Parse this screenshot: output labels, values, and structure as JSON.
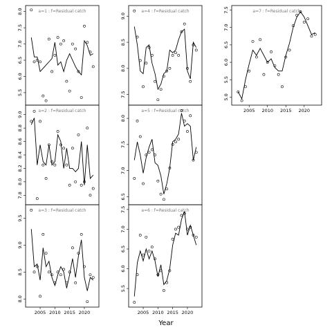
{
  "figure": {
    "xlabel": "Year"
  },
  "chart_data": [
    {
      "type": "line",
      "title": "a=1  :  f=Residual catch",
      "xlim": [
        2001,
        2024
      ],
      "ylim": [
        5.2,
        8.1
      ],
      "yticks": [
        5.5,
        6.0,
        6.5,
        7.0,
        7.5,
        8.0
      ],
      "xticks": [
        2005,
        2010,
        2015,
        2020
      ],
      "series": [
        {
          "role": "observed",
          "x": [
            2002,
            2003,
            2004,
            2005,
            2006,
            2007,
            2008,
            2009,
            2010,
            2011,
            2012,
            2013,
            2014,
            2015,
            2016,
            2017,
            2018,
            2019,
            2020,
            2021,
            2022,
            2023
          ],
          "y": [
            8.05,
            6.45,
            6.5,
            6.45,
            5.4,
            5.25,
            7.15,
            6.15,
            6.65,
            7.2,
            7.0,
            7.1,
            5.85,
            5.55,
            7.0,
            6.85,
            6.15,
            5.35,
            7.55,
            7.05,
            6.75,
            6.3
          ]
        },
        {
          "role": "fitted",
          "x": [
            2002,
            2003,
            2004,
            2005,
            2006,
            2007,
            2008,
            2009,
            2010,
            2011,
            2012,
            2013,
            2014,
            2015,
            2016,
            2017,
            2018,
            2019,
            2020,
            2021,
            2022,
            2023
          ],
          "y": [
            7.2,
            6.6,
            6.6,
            6.15,
            6.25,
            6.35,
            6.45,
            6.55,
            7.05,
            6.35,
            6.45,
            6.15,
            6.5,
            6.7,
            6.5,
            6.3,
            6.15,
            6.05,
            7.1,
            6.95,
            6.65,
            6.7
          ]
        }
      ]
    },
    {
      "type": "line",
      "title": "a=2  :  f=Residual catch",
      "xlim": [
        2001,
        2024
      ],
      "ylim": [
        7.7,
        9.1
      ],
      "yticks": [
        7.8,
        8.0,
        8.2,
        8.4,
        8.6,
        8.8,
        9.0
      ],
      "xticks": [
        2005,
        2010,
        2015,
        2020
      ],
      "series": [
        {
          "role": "observed",
          "x": [
            2002,
            2003,
            2004,
            2005,
            2006,
            2007,
            2008,
            2009,
            2010,
            2011,
            2012,
            2013,
            2014,
            2015,
            2016,
            2017,
            2018,
            2019,
            2020,
            2021,
            2022,
            2023
          ],
          "y": [
            8.9,
            9.05,
            7.75,
            8.9,
            8.25,
            8.05,
            8.55,
            8.3,
            8.25,
            8.75,
            8.55,
            8.5,
            8.25,
            7.95,
            8.5,
            8.0,
            8.7,
            7.95,
            8.0,
            8.8,
            7.8,
            7.9
          ]
        },
        {
          "role": "fitted",
          "x": [
            2002,
            2003,
            2004,
            2005,
            2006,
            2007,
            2008,
            2009,
            2010,
            2011,
            2012,
            2013,
            2014,
            2015,
            2016,
            2017,
            2018,
            2019,
            2020,
            2021,
            2022,
            2023
          ],
          "y": [
            8.85,
            8.95,
            8.25,
            8.55,
            8.3,
            8.25,
            8.55,
            8.25,
            8.3,
            8.7,
            8.6,
            8.2,
            8.5,
            8.2,
            8.2,
            8.15,
            8.2,
            8.6,
            7.95,
            8.55,
            8.05,
            8.1
          ]
        }
      ]
    },
    {
      "type": "line",
      "title": "a=3  :  f=Residual catch",
      "xlim": [
        2001,
        2024
      ],
      "ylim": [
        7.9,
        9.7
      ],
      "yticks": [
        8.0,
        8.5,
        9.0,
        9.5
      ],
      "xticks": [
        2005,
        2010,
        2015,
        2020
      ],
      "series": [
        {
          "role": "observed",
          "x": [
            2002,
            2003,
            2004,
            2005,
            2006,
            2007,
            2008,
            2009,
            2010,
            2011,
            2012,
            2013,
            2014,
            2015,
            2016,
            2017,
            2018,
            2019,
            2020,
            2021,
            2022,
            2023
          ],
          "y": [
            9.65,
            8.5,
            8.6,
            8.05,
            9.2,
            8.85,
            8.5,
            8.45,
            8.3,
            8.5,
            8.45,
            8.55,
            8.3,
            8.5,
            8.95,
            8.3,
            8.85,
            9.2,
            8.6,
            7.95,
            8.45,
            8.4
          ]
        },
        {
          "role": "fitted",
          "x": [
            2002,
            2003,
            2004,
            2005,
            2006,
            2007,
            2008,
            2009,
            2010,
            2011,
            2012,
            2013,
            2014,
            2015,
            2016,
            2017,
            2018,
            2019,
            2020,
            2021,
            2022,
            2023
          ],
          "y": [
            9.3,
            8.6,
            8.65,
            8.35,
            8.95,
            8.6,
            8.7,
            8.4,
            8.25,
            8.45,
            8.6,
            8.5,
            8.2,
            8.45,
            8.75,
            8.4,
            8.8,
            9.1,
            8.4,
            8.15,
            8.4,
            8.35
          ]
        }
      ]
    },
    {
      "type": "line",
      "title": "a=4  :  f=Residual catch",
      "xlim": [
        2001,
        2024
      ],
      "ylim": [
        7.35,
        9.15
      ],
      "yticks": [
        7.5,
        8.0,
        8.5,
        9.0
      ],
      "xticks": [
        2005,
        2010,
        2015,
        2020
      ],
      "series": [
        {
          "role": "observed",
          "x": [
            2002,
            2003,
            2004,
            2005,
            2006,
            2007,
            2008,
            2009,
            2010,
            2011,
            2012,
            2013,
            2014,
            2015,
            2016,
            2017,
            2018,
            2019,
            2020,
            2021,
            2022,
            2023
          ],
          "y": [
            9.1,
            8.6,
            8.15,
            7.65,
            8.1,
            8.4,
            8.25,
            7.75,
            7.4,
            7.6,
            7.85,
            7.95,
            8.0,
            8.25,
            8.3,
            8.25,
            8.7,
            8.85,
            8.0,
            7.75,
            8.45,
            8.35
          ]
        },
        {
          "role": "fitted",
          "x": [
            2002,
            2003,
            2004,
            2005,
            2006,
            2007,
            2008,
            2009,
            2010,
            2011,
            2012,
            2013,
            2014,
            2015,
            2016,
            2017,
            2018,
            2019,
            2020,
            2021,
            2022,
            2023
          ],
          "y": [
            8.8,
            8.45,
            7.95,
            7.9,
            8.4,
            8.45,
            8.1,
            7.9,
            7.6,
            7.7,
            7.9,
            7.95,
            8.35,
            8.3,
            8.35,
            8.55,
            8.7,
            8.75,
            7.95,
            7.8,
            8.5,
            8.4
          ]
        }
      ]
    },
    {
      "type": "line",
      "title": "a=5  :  f=Residual catch",
      "xlim": [
        2001,
        2024
      ],
      "ylim": [
        6.4,
        8.2
      ],
      "yticks": [
        6.5,
        7.0,
        7.5,
        8.0
      ],
      "xticks": [
        2005,
        2010,
        2015,
        2020
      ],
      "series": [
        {
          "role": "observed",
          "x": [
            2002,
            2003,
            2004,
            2005,
            2006,
            2007,
            2008,
            2009,
            2010,
            2011,
            2012,
            2013,
            2014,
            2015,
            2016,
            2017,
            2018,
            2019,
            2020,
            2021,
            2022,
            2023
          ],
          "y": [
            6.85,
            7.95,
            7.65,
            6.75,
            7.3,
            7.35,
            7.4,
            7.3,
            6.8,
            6.55,
            6.45,
            6.65,
            7.05,
            7.5,
            7.55,
            7.6,
            8.15,
            7.95,
            7.75,
            8.05,
            7.2,
            7.35
          ]
        },
        {
          "role": "fitted",
          "x": [
            2002,
            2003,
            2004,
            2005,
            2006,
            2007,
            2008,
            2009,
            2010,
            2011,
            2012,
            2013,
            2014,
            2015,
            2016,
            2017,
            2018,
            2019,
            2020,
            2021,
            2022,
            2023
          ],
          "y": [
            7.2,
            7.55,
            7.3,
            6.95,
            7.25,
            7.45,
            7.6,
            7.15,
            7.1,
            6.9,
            6.55,
            6.75,
            7.05,
            7.55,
            7.6,
            7.7,
            8.1,
            7.85,
            7.9,
            7.85,
            7.2,
            7.45
          ]
        }
      ]
    },
    {
      "type": "line",
      "title": "a=6  :  f=Residual catch",
      "xlim": [
        2001,
        2024
      ],
      "ylim": [
        5.1,
        7.55
      ],
      "yticks": [
        5.5,
        6.0,
        6.5,
        7.0,
        7.5
      ],
      "xticks": [
        2005,
        2010,
        2015,
        2020
      ],
      "series": [
        {
          "role": "observed",
          "x": [
            2002,
            2003,
            2004,
            2005,
            2006,
            2007,
            2008,
            2009,
            2010,
            2011,
            2012,
            2013,
            2014,
            2015,
            2016,
            2017,
            2018,
            2019,
            2020,
            2021,
            2022,
            2023
          ],
          "y": [
            5.15,
            5.85,
            6.85,
            6.35,
            6.8,
            6.45,
            6.55,
            6.25,
            5.85,
            5.95,
            5.45,
            5.65,
            5.95,
            6.75,
            7.0,
            7.05,
            7.35,
            7.4,
            7.0,
            7.05,
            6.85,
            6.8
          ]
        },
        {
          "role": "fitted",
          "x": [
            2002,
            2003,
            2004,
            2005,
            2006,
            2007,
            2008,
            2009,
            2010,
            2011,
            2012,
            2013,
            2014,
            2015,
            2016,
            2017,
            2018,
            2019,
            2020,
            2021,
            2022,
            2023
          ],
          "y": [
            5.3,
            6.15,
            6.45,
            6.2,
            6.5,
            6.25,
            6.45,
            6.2,
            5.8,
            6.1,
            5.6,
            5.7,
            6.0,
            6.6,
            6.9,
            6.85,
            7.25,
            7.45,
            6.85,
            7.1,
            6.85,
            6.6
          ]
        }
      ]
    },
    {
      "type": "line",
      "title": "a=7  :  f=Residual catch",
      "xlim": [
        2001,
        2024
      ],
      "ylim": [
        4.85,
        7.55
      ],
      "yticks": [
        5.0,
        5.5,
        6.0,
        6.5,
        7.0,
        7.5
      ],
      "xticks": [
        2005,
        2010,
        2015,
        2020
      ],
      "series": [
        {
          "role": "observed",
          "x": [
            2002,
            2003,
            2004,
            2005,
            2006,
            2007,
            2008,
            2009,
            2010,
            2011,
            2012,
            2013,
            2014,
            2015,
            2016,
            2017,
            2018,
            2019,
            2020,
            2021,
            2022,
            2023
          ],
          "y": [
            5.15,
            4.9,
            5.3,
            5.75,
            6.6,
            6.15,
            6.65,
            5.65,
            6.0,
            6.3,
            5.9,
            5.65,
            5.3,
            6.15,
            6.35,
            7.05,
            7.35,
            7.45,
            7.15,
            7.25,
            6.75,
            6.8
          ]
        },
        {
          "role": "fitted",
          "x": [
            2002,
            2003,
            2004,
            2005,
            2006,
            2007,
            2008,
            2009,
            2010,
            2011,
            2012,
            2013,
            2014,
            2015,
            2016,
            2017,
            2018,
            2019,
            2020,
            2021,
            2022,
            2023
          ],
          "y": [
            5.15,
            4.95,
            5.5,
            5.95,
            6.35,
            6.2,
            6.4,
            6.2,
            6.0,
            6.1,
            5.85,
            5.75,
            5.75,
            6.2,
            6.55,
            7.0,
            7.3,
            7.45,
            7.3,
            7.05,
            6.8,
            6.85
          ]
        }
      ]
    }
  ]
}
